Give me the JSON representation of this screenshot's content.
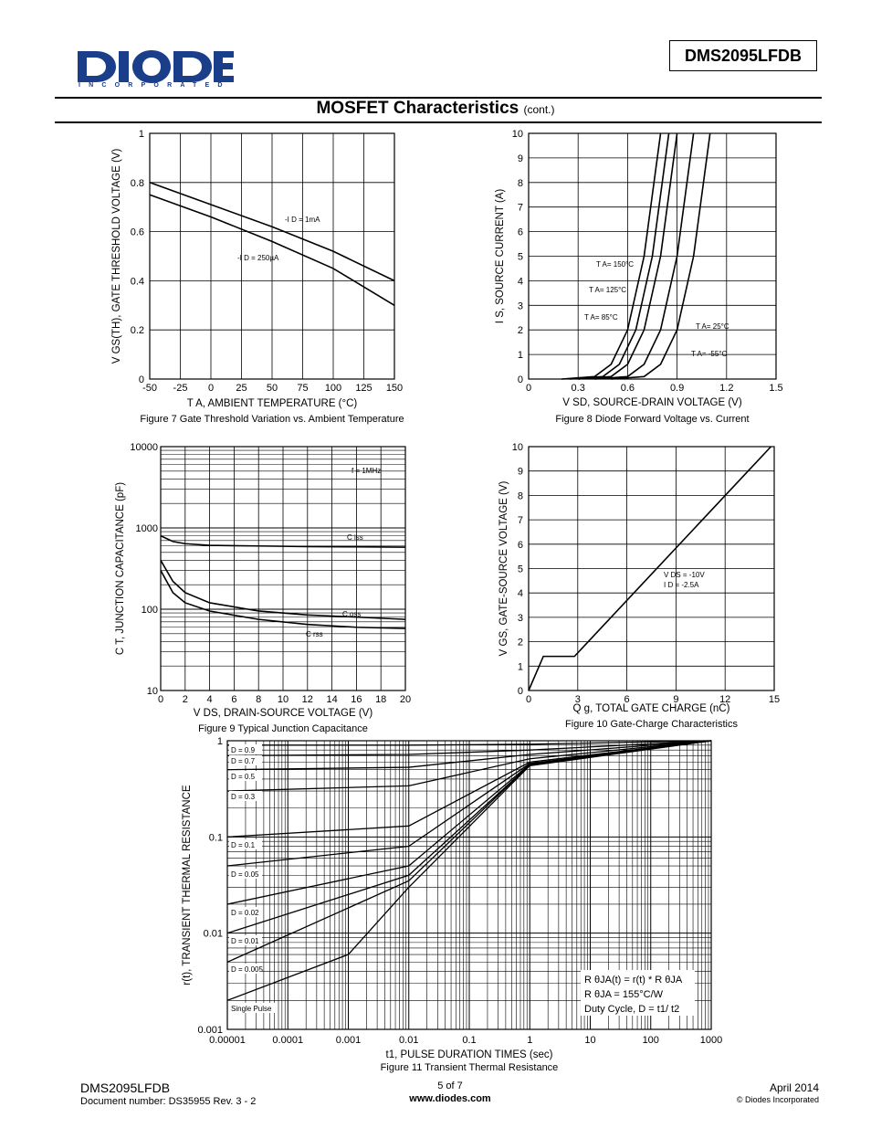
{
  "header": {
    "logo_text": "DIODES",
    "logo_sub": "INCORPORATED",
    "part_number": "DMS2095LFDB"
  },
  "section": {
    "title": "MOSFET Characteristics",
    "suffix": "(cont.)"
  },
  "figures": {
    "fig7": {
      "caption": "Figure 7 Gate Threshold Variation vs. Ambient Temperature",
      "ylabel": "V GS(TH), GATE THRESHOLD VOLTAGE (V)",
      "xlabel": "T A, AMBIENT TEMPERATURE (°C)",
      "xticks": [
        "-50",
        "-25",
        "0",
        "25",
        "50",
        "75",
        "100",
        "125",
        "150"
      ],
      "yticks": [
        "0",
        "0.2",
        "0.4",
        "0.6",
        "0.8",
        "1"
      ],
      "labels": [
        "-I D = 1mA",
        "-I D = 250µA"
      ]
    },
    "fig8": {
      "caption": "Figure 8 Diode Forward Voltage vs. Current",
      "ylabel": "I S, SOURCE CURRENT (A)",
      "xlabel": "V SD, SOURCE-DRAIN VOLTAGE (V)",
      "xticks": [
        "0",
        "0.3",
        "0.6",
        "0.9",
        "1.2",
        "1.5"
      ],
      "yticks": [
        "0",
        "1",
        "2",
        "3",
        "4",
        "5",
        "6",
        "7",
        "8",
        "9",
        "10"
      ],
      "labels": [
        "T A= 150°C",
        "T A= 125°C",
        "T A= 85°C",
        "T A= 25°C",
        "T A= -55°C"
      ]
    },
    "fig9": {
      "caption": "Figure 9 Typical Junction Capacitance",
      "ylabel": "C T, JUNCTION CAPACITANCE (pF)",
      "xlabel": "V DS, DRAIN-SOURCE VOLTAGE (V)",
      "xticks": [
        "0",
        "2",
        "4",
        "6",
        "8",
        "10",
        "12",
        "14",
        "16",
        "18",
        "20"
      ],
      "yticks": [
        "10",
        "100",
        "1000",
        "10000"
      ],
      "labels": [
        "f = 1MHz",
        "C iss",
        "C oss",
        "C rss"
      ]
    },
    "fig10": {
      "caption": "Figure 10 Gate-Charge Characteristics",
      "ylabel": "V GS, GATE-SOURCE VOLTAGE (V)",
      "xlabel": "Q g, TOTAL GATE CHARGE (nC)",
      "xticks": [
        "0",
        "3",
        "6",
        "9",
        "12",
        "15"
      ],
      "yticks": [
        "0",
        "1",
        "2",
        "3",
        "4",
        "5",
        "6",
        "7",
        "8",
        "9",
        "10"
      ],
      "labels": [
        "V DS = -10V",
        "I D = -2.5A"
      ]
    },
    "fig11": {
      "caption": "Figure 11 Transient Thermal Resistance",
      "ylabel": "r(t), TRANSIENT THERMAL RESISTANCE",
      "xlabel": "t1, PULSE DURATION TIMES (sec)",
      "xticks": [
        "0.00001",
        "0.0001",
        "0.001",
        "0.01",
        "0.1",
        "1",
        "10",
        "100",
        "1000"
      ],
      "yticks": [
        "0.001",
        "0.01",
        "0.1",
        "1"
      ],
      "labels": [
        "D = 0.9",
        "D = 0.7",
        "D = 0.5",
        "D = 0.3",
        "D = 0.1",
        "D = 0.05",
        "D = 0.02",
        "D = 0.01",
        "D = 0.005",
        "Single Pulse"
      ],
      "notes": [
        "R θJA(t) = r(t) * R θJA",
        "R θJA = 155°C/W",
        "Duty Cycle, D = t1/ t2"
      ]
    }
  },
  "chart_data": [
    {
      "type": "line",
      "title": "Figure 7 Gate Threshold Variation vs. Ambient Temperature",
      "xlabel": "TA, AMBIENT TEMPERATURE (°C)",
      "ylabel": "VGS(TH), GATE THRESHOLD VOLTAGE (V)",
      "xlim": [
        -50,
        150
      ],
      "ylim": [
        0,
        1
      ],
      "series": [
        {
          "name": "-ID = 1mA",
          "x": [
            -50,
            0,
            50,
            100,
            150
          ],
          "values": [
            0.8,
            0.71,
            0.62,
            0.52,
            0.4
          ]
        },
        {
          "name": "-ID = 250µA",
          "x": [
            -50,
            0,
            50,
            100,
            150
          ],
          "values": [
            0.75,
            0.66,
            0.56,
            0.45,
            0.3
          ]
        }
      ]
    },
    {
      "type": "line",
      "title": "Figure 8 Diode Forward Voltage vs. Current",
      "xlabel": "VSD, SOURCE-DRAIN VOLTAGE (V)",
      "ylabel": "IS, SOURCE CURRENT (A)",
      "xlim": [
        0,
        1.5
      ],
      "ylim": [
        0,
        10
      ],
      "series": [
        {
          "name": "TA= 150°C",
          "x": [
            0.2,
            0.4,
            0.5,
            0.6,
            0.7,
            0.8
          ],
          "values": [
            0,
            0.1,
            0.6,
            2,
            5,
            10
          ]
        },
        {
          "name": "TA= 125°C",
          "x": [
            0.25,
            0.45,
            0.55,
            0.65,
            0.75,
            0.85
          ],
          "values": [
            0,
            0.1,
            0.6,
            2,
            5,
            10
          ]
        },
        {
          "name": "TA= 85°C",
          "x": [
            0.3,
            0.5,
            0.6,
            0.7,
            0.8,
            0.9
          ],
          "values": [
            0,
            0.1,
            0.6,
            2,
            5,
            10
          ]
        },
        {
          "name": "TA= 25°C",
          "x": [
            0.4,
            0.6,
            0.7,
            0.8,
            0.9,
            1.0
          ],
          "values": [
            0,
            0.1,
            0.6,
            2,
            5,
            10
          ]
        },
        {
          "name": "TA= -55°C",
          "x": [
            0.5,
            0.7,
            0.8,
            0.9,
            1.0,
            1.1
          ],
          "values": [
            0,
            0.1,
            0.6,
            2,
            5,
            10
          ]
        }
      ]
    },
    {
      "type": "line",
      "title": "Figure 9 Typical Junction Capacitance",
      "xlabel": "VDS, DRAIN-SOURCE VOLTAGE (V)",
      "ylabel": "CT, JUNCTION CAPACITANCE (pF)",
      "xlim": [
        0,
        20
      ],
      "ylim": [
        10,
        10000
      ],
      "yscale": "log",
      "series": [
        {
          "name": "Ciss",
          "x": [
            0,
            1,
            2,
            4,
            8,
            12,
            16,
            20
          ],
          "values": [
            800,
            680,
            640,
            610,
            600,
            590,
            585,
            580
          ]
        },
        {
          "name": "Coss",
          "x": [
            0,
            1,
            2,
            4,
            8,
            12,
            16,
            20
          ],
          "values": [
            400,
            220,
            160,
            120,
            95,
            85,
            80,
            75
          ]
        },
        {
          "name": "Crss",
          "x": [
            0,
            1,
            2,
            4,
            8,
            12,
            16,
            20
          ],
          "values": [
            300,
            160,
            120,
            95,
            75,
            65,
            60,
            58
          ]
        }
      ]
    },
    {
      "type": "line",
      "title": "Figure 10 Gate-Charge Characteristics",
      "xlabel": "Qg, TOTAL GATE CHARGE (nC)",
      "ylabel": "VGS, GATE-SOURCE VOLTAGE (V)",
      "xlim": [
        0,
        15
      ],
      "ylim": [
        0,
        10
      ],
      "series": [
        {
          "name": "VDS = -10V, ID = -2.5A",
          "x": [
            0,
            0.9,
            2.8,
            14.8
          ],
          "values": [
            0,
            1.4,
            1.4,
            10
          ]
        }
      ]
    },
    {
      "type": "line",
      "title": "Figure 11 Transient Thermal Resistance",
      "xlabel": "t1, PULSE DURATION TIMES (sec)",
      "ylabel": "r(t), TRANSIENT THERMAL RESISTANCE",
      "xlim": [
        1e-05,
        1000
      ],
      "ylim": [
        0.001,
        1
      ],
      "xscale": "log",
      "yscale": "log",
      "series": [
        {
          "name": "D = 0.9",
          "x": [
            1e-05,
            0.01,
            1,
            1000
          ],
          "values": [
            0.9,
            0.9,
            0.92,
            1
          ]
        },
        {
          "name": "D = 0.7",
          "x": [
            1e-05,
            0.01,
            1,
            1000
          ],
          "values": [
            0.7,
            0.72,
            0.8,
            1
          ]
        },
        {
          "name": "D = 0.5",
          "x": [
            1e-05,
            0.01,
            1,
            1000
          ],
          "values": [
            0.5,
            0.53,
            0.72,
            1
          ]
        },
        {
          "name": "D = 0.3",
          "x": [
            1e-05,
            0.01,
            1,
            1000
          ],
          "values": [
            0.3,
            0.34,
            0.65,
            1
          ]
        },
        {
          "name": "D = 0.1",
          "x": [
            1e-05,
            0.01,
            1,
            1000
          ],
          "values": [
            0.1,
            0.13,
            0.6,
            1
          ]
        },
        {
          "name": "D = 0.05",
          "x": [
            1e-05,
            0.01,
            1,
            1000
          ],
          "values": [
            0.05,
            0.08,
            0.58,
            1
          ]
        },
        {
          "name": "D = 0.02",
          "x": [
            1e-05,
            0.01,
            1,
            1000
          ],
          "values": [
            0.02,
            0.05,
            0.57,
            1
          ]
        },
        {
          "name": "D = 0.01",
          "x": [
            1e-05,
            0.01,
            1,
            1000
          ],
          "values": [
            0.01,
            0.04,
            0.56,
            1
          ]
        },
        {
          "name": "D = 0.005",
          "x": [
            1e-05,
            0.01,
            1,
            1000
          ],
          "values": [
            0.005,
            0.035,
            0.56,
            1
          ]
        },
        {
          "name": "Single Pulse",
          "x": [
            1e-05,
            0.001,
            0.01,
            1,
            1000
          ],
          "values": [
            0.002,
            0.006,
            0.03,
            0.55,
            1
          ]
        }
      ]
    }
  ],
  "footer": {
    "part": "DMS2095LFDB",
    "docnum": "Document number: DS35955 Rev. 3 - 2",
    "page": "5 of 7",
    "url": "www.diodes.com",
    "date": "April 2014",
    "copyright": "© Diodes Incorporated"
  }
}
